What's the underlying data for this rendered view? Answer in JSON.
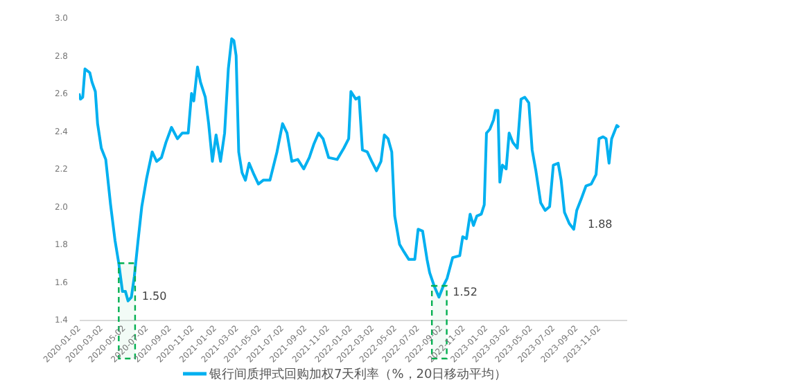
{
  "chart_data": {
    "type": "line",
    "x": [
      "2020-01-02",
      "2020-01-06",
      "2020-01-12",
      "2020-01-18",
      "2020-01-31",
      "2020-02-06",
      "2020-02-15",
      "2020-02-21",
      "2020-03-02",
      "2020-03-14",
      "2020-03-27",
      "2020-04-08",
      "2020-04-18",
      "2020-04-28",
      "2020-05-06",
      "2020-05-13",
      "2020-05-22",
      "2020-05-30",
      "2020-06-09",
      "2020-06-19",
      "2020-07-02",
      "2020-07-17",
      "2020-07-29",
      "2020-08-11",
      "2020-08-23",
      "2020-09-07",
      "2020-09-23",
      "2020-10-06",
      "2020-10-22",
      "2020-10-31",
      "2020-11-06",
      "2020-11-16",
      "2020-11-24",
      "2020-12-07",
      "2020-12-16",
      "2020-12-26",
      "2021-01-05",
      "2021-01-17",
      "2021-01-28",
      "2021-02-07",
      "2021-02-16",
      "2021-02-22",
      "2021-02-28",
      "2021-03-07",
      "2021-03-16",
      "2021-03-25",
      "2021-04-04",
      "2021-04-17",
      "2021-04-29",
      "2021-05-12",
      "2021-05-30",
      "2021-06-18",
      "2021-07-03",
      "2021-07-15",
      "2021-07-28",
      "2021-08-13",
      "2021-08-29",
      "2021-09-13",
      "2021-09-25",
      "2021-10-08",
      "2021-10-20",
      "2021-11-04",
      "2021-11-27",
      "2021-12-15",
      "2021-12-28",
      "2022-01-03",
      "2022-01-16",
      "2022-01-25",
      "2022-02-03",
      "2022-02-16",
      "2022-02-28",
      "2022-03-13",
      "2022-03-25",
      "2022-04-03",
      "2022-04-13",
      "2022-04-23",
      "2022-05-01",
      "2022-05-14",
      "2022-05-26",
      "2022-06-08",
      "2022-06-24",
      "2022-07-03",
      "2022-07-15",
      "2022-07-27",
      "2022-08-03",
      "2022-08-15",
      "2022-08-28",
      "2022-09-09",
      "2022-09-19",
      "2022-10-04",
      "2022-10-23",
      "2022-10-31",
      "2022-11-10",
      "2022-11-20",
      "2022-11-29",
      "2022-12-08",
      "2022-12-20",
      "2022-12-28",
      "2023-01-03",
      "2023-01-12",
      "2023-01-22",
      "2023-01-27",
      "2023-02-03",
      "2023-02-08",
      "2023-02-15",
      "2023-02-25",
      "2023-03-05",
      "2023-03-15",
      "2023-03-27",
      "2023-04-06",
      "2023-04-16",
      "2023-04-27",
      "2023-05-06",
      "2023-05-16",
      "2023-05-29",
      "2023-06-10",
      "2023-06-22",
      "2023-07-02",
      "2023-07-15",
      "2023-07-23",
      "2023-08-01",
      "2023-08-14",
      "2023-08-26",
      "2023-09-03",
      "2023-09-15",
      "2023-09-28",
      "2023-10-12",
      "2023-10-25",
      "2023-11-02",
      "2023-11-13",
      "2023-11-21",
      "2023-11-29",
      "2023-12-06",
      "2023-12-14",
      "2023-12-20",
      "2023-12-26"
    ],
    "series": [
      {
        "name": "银行间质押式回购加权7天利率（%，20日移动平均）",
        "color": "#00b0f0",
        "values": [
          2.6,
          2.57,
          2.58,
          2.73,
          2.71,
          2.66,
          2.61,
          2.44,
          2.31,
          2.25,
          2.01,
          1.82,
          1.7,
          1.55,
          1.55,
          1.5,
          1.52,
          1.63,
          1.82,
          2.0,
          2.15,
          2.29,
          2.24,
          2.26,
          2.34,
          2.42,
          2.36,
          2.39,
          2.39,
          2.6,
          2.56,
          2.74,
          2.66,
          2.58,
          2.44,
          2.24,
          2.38,
          2.24,
          2.39,
          2.73,
          2.89,
          2.88,
          2.8,
          2.29,
          2.18,
          2.14,
          2.23,
          2.17,
          2.12,
          2.14,
          2.14,
          2.29,
          2.44,
          2.39,
          2.24,
          2.25,
          2.2,
          2.26,
          2.33,
          2.39,
          2.36,
          2.26,
          2.25,
          2.31,
          2.36,
          2.61,
          2.57,
          2.58,
          2.3,
          2.29,
          2.24,
          2.19,
          2.24,
          2.38,
          2.36,
          2.29,
          1.95,
          1.8,
          1.76,
          1.72,
          1.72,
          1.88,
          1.87,
          1.72,
          1.65,
          1.58,
          1.52,
          1.58,
          1.62,
          1.73,
          1.74,
          1.84,
          1.83,
          1.96,
          1.9,
          1.95,
          1.96,
          2.01,
          2.39,
          2.41,
          2.46,
          2.51,
          2.51,
          2.13,
          2.22,
          2.2,
          2.39,
          2.34,
          2.31,
          2.57,
          2.58,
          2.55,
          2.3,
          2.19,
          2.02,
          1.98,
          2.0,
          2.22,
          2.23,
          2.14,
          1.97,
          1.91,
          1.88,
          1.98,
          2.04,
          2.11,
          2.12,
          2.17,
          2.36,
          2.37,
          2.36,
          2.23,
          2.36,
          2.4,
          2.43,
          2.42
        ]
      }
    ],
    "xlim": [
      "2020-01-02",
      "2024-01-15"
    ],
    "xticks": [
      "2020-01-02",
      "2020-03-02",
      "2020-05-02",
      "2020-07-02",
      "2020-09-02",
      "2020-11-02",
      "2021-01-02",
      "2021-03-02",
      "2021-05-02",
      "2021-07-02",
      "2021-09-02",
      "2021-11-02",
      "2022-01-02",
      "2022-03-02",
      "2022-05-02",
      "2022-07-02",
      "2022-09-02",
      "2022-11-02",
      "2023-01-02",
      "2023-03-02",
      "2023-05-02",
      "2023-07-02",
      "2023-09-02",
      "2023-11-02"
    ],
    "ylim": [
      1.4,
      3.0
    ],
    "yticks": [
      1.4,
      1.6,
      1.8,
      {
        "value": 2,
        "label": "2.0"
      },
      2.2,
      2.4,
      2.6,
      2.8,
      {
        "value": 3,
        "label": "3.0"
      }
    ],
    "grid": false,
    "legend": "bottom",
    "line_style": "solid",
    "bands": [
      {
        "axis": "x",
        "from": "2020-04-18",
        "to": "2020-06-01",
        "color": "#00b050"
      },
      {
        "axis": "x",
        "from": "2022-08-09",
        "to": "2022-09-18",
        "color": "#00b050"
      }
    ],
    "annotations": [
      {
        "text": "1.50",
        "x": "2020-05-13",
        "y": 1.5
      },
      {
        "text": "1.52",
        "x": "2022-08-28",
        "y": 1.52
      },
      {
        "text": "1.88",
        "x": "2023-08-26",
        "y": 1.88
      }
    ]
  }
}
